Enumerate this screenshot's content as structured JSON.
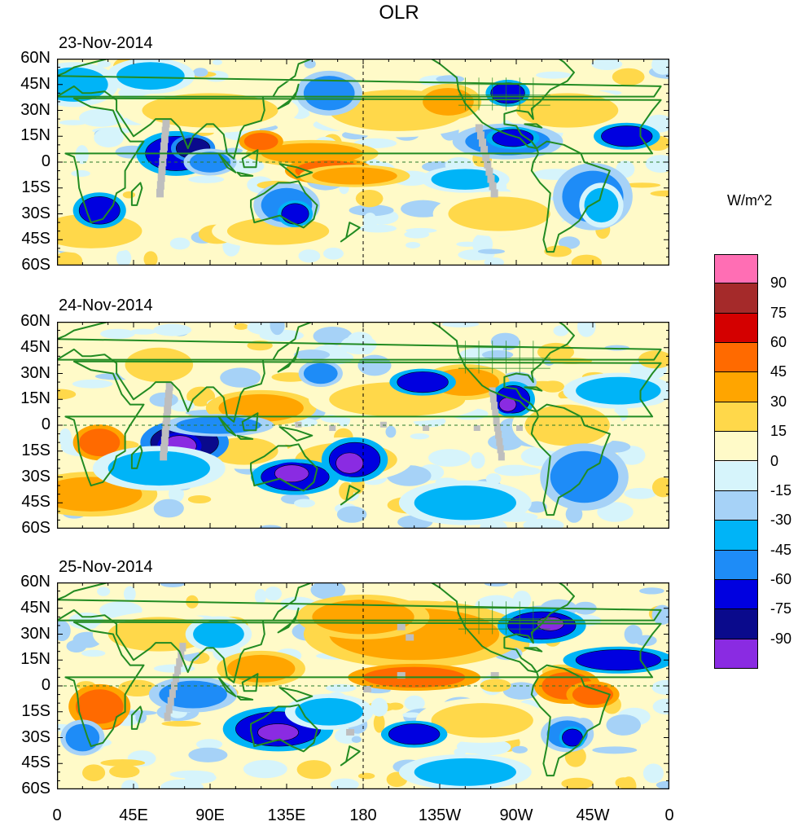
{
  "title": "OLR",
  "units": "W/m^2",
  "panels": [
    {
      "date": "23-Nov-2014"
    },
    {
      "date": "24-Nov-2014"
    },
    {
      "date": "25-Nov-2014"
    }
  ],
  "lat_labels": [
    "60N",
    "45N",
    "30N",
    "15N",
    "0",
    "15S",
    "30S",
    "45S",
    "60S"
  ],
  "lon_labels": [
    "0",
    "45E",
    "90E",
    "135E",
    "180",
    "135W",
    "90W",
    "45W",
    "0"
  ],
  "colorbar": {
    "labels": [
      "90",
      "75",
      "60",
      "45",
      "30",
      "15",
      "0",
      "-15",
      "-30",
      "-45",
      "-60",
      "-75",
      "-90"
    ],
    "colors": [
      "#ff6eb4",
      "#a52a2a",
      "#d40000",
      "#ff6a00",
      "#ffa500",
      "#ffd84a",
      "#fffac8",
      "#d6f4fb",
      "#a6d2f7",
      "#00b4f7",
      "#1e8cf7",
      "#0000e0",
      "#0a0a8c",
      "#8a2be2"
    ]
  },
  "colors": {
    "coast": "#228b22",
    "missing": "#bebebe"
  },
  "features": [
    {
      "day": 0,
      "kind": "missing",
      "label": "gray missing-data column Indian Ocean"
    },
    {
      "day": 0,
      "kind": "missing",
      "label": "gray missing-data column east Pacific"
    },
    {
      "day": 1,
      "kind": "missing",
      "label": "gray missing-data column Indian Ocean"
    },
    {
      "day": 1,
      "kind": "missing",
      "label": "gray missing-data column east Pacific"
    },
    {
      "day": 2,
      "kind": "missing",
      "label": "gray missing-data column Indian Ocean"
    },
    {
      "day": 2,
      "kind": "missing",
      "label": "gray missing-data patch central Pacific"
    }
  ]
}
